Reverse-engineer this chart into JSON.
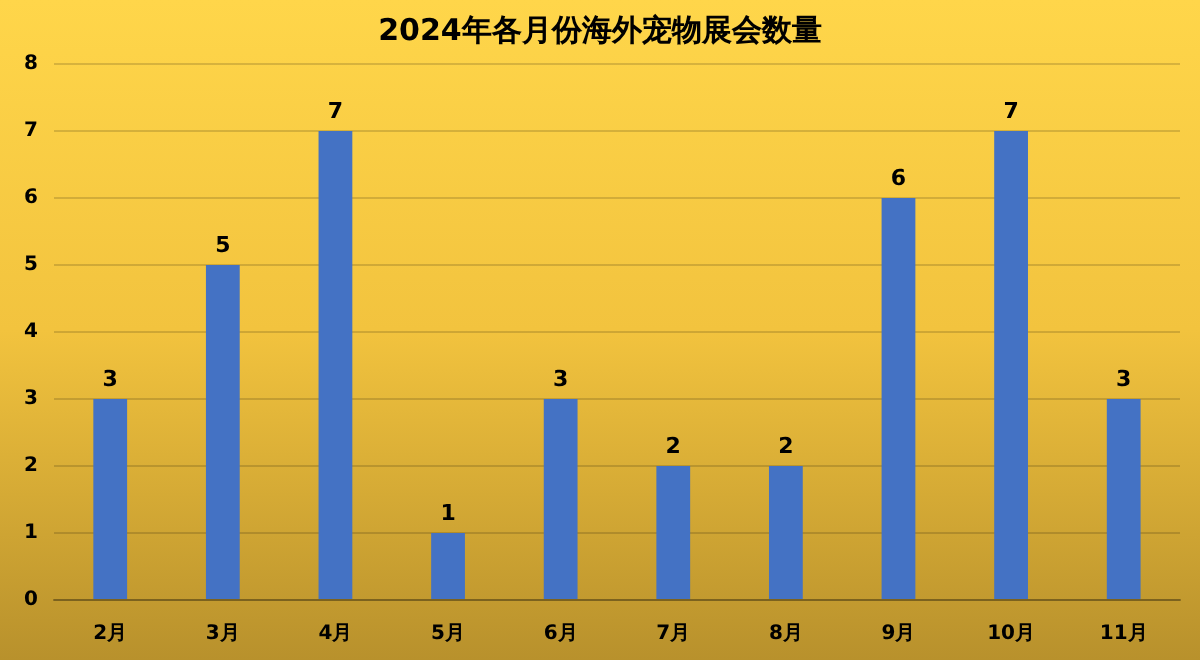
{
  "chart_data": {
    "type": "bar",
    "title": "2024年各月份海外宠物展会数量",
    "categories": [
      "2月",
      "3月",
      "4月",
      "5月",
      "6月",
      "7月",
      "8月",
      "9月",
      "10月",
      "11月"
    ],
    "values": [
      3,
      5,
      7,
      1,
      3,
      2,
      2,
      6,
      7,
      3
    ],
    "color": "#4472c4",
    "ylim": [
      0,
      8
    ],
    "yticks": [
      0,
      1,
      2,
      3,
      4,
      5,
      6,
      7,
      8
    ],
    "grid": "y",
    "data_labels": true
  }
}
